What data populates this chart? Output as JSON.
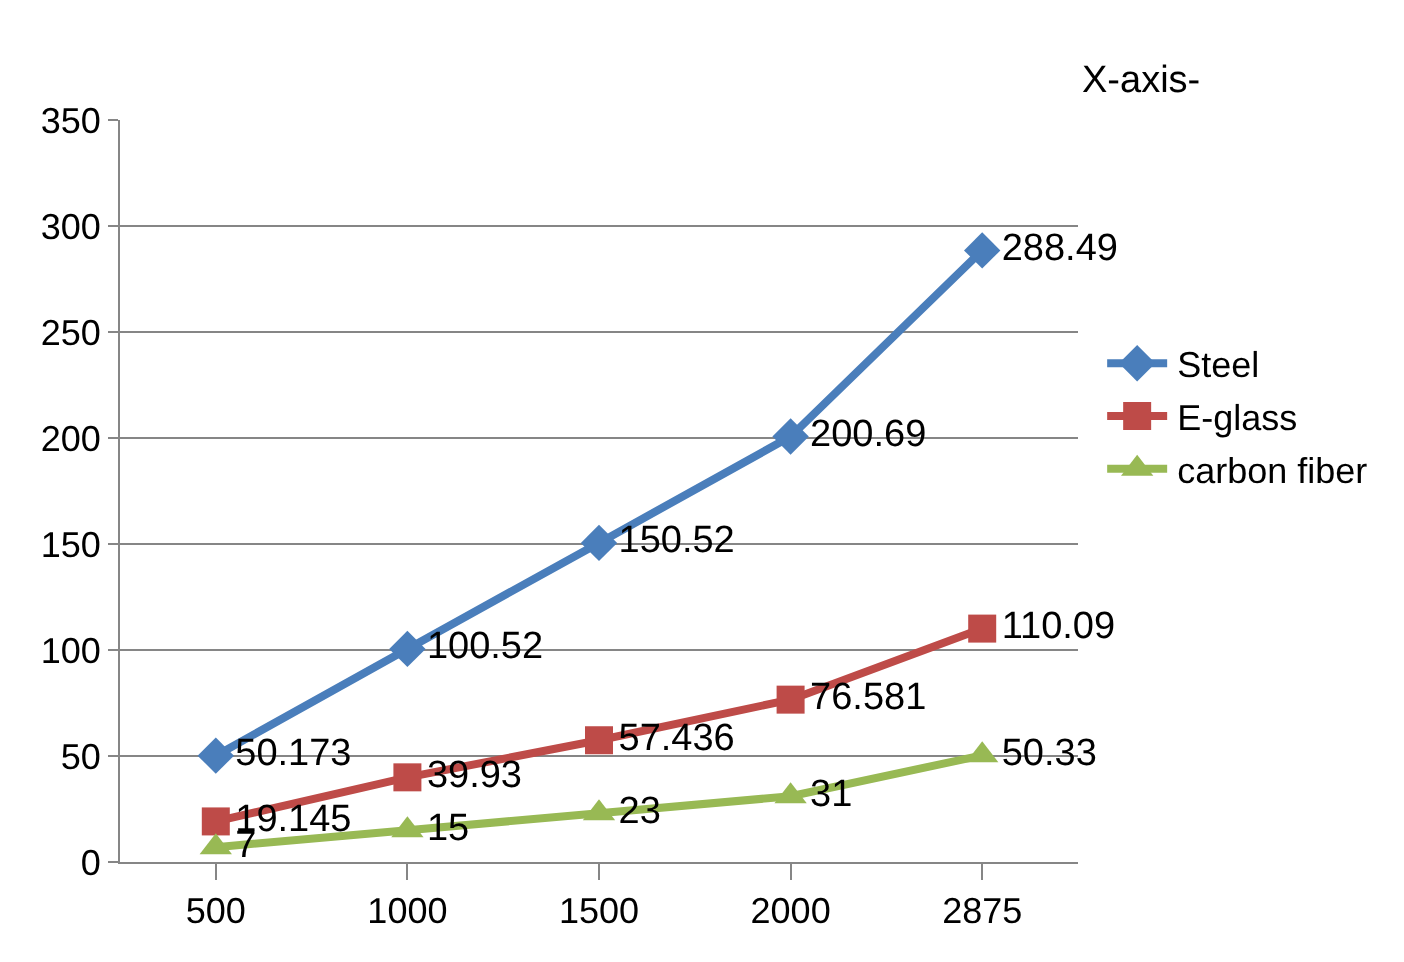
{
  "chart_data": {
    "type": "line",
    "categories": [
      "500",
      "1000",
      "1500",
      "2000",
      "2875"
    ],
    "series": [
      {
        "name": "Steel",
        "color": "#4a7ebb",
        "marker": "diamond",
        "values": [
          50.173,
          100.52,
          150.52,
          200.69,
          288.49
        ]
      },
      {
        "name": "E-glass",
        "color": "#be4b48",
        "marker": "square",
        "values": [
          19.145,
          39.93,
          57.436,
          76.581,
          110.09
        ]
      },
      {
        "name": "carbon fiber",
        "color": "#98b954",
        "marker": "triangle",
        "values": [
          7,
          15,
          23,
          31,
          50.33
        ]
      }
    ],
    "ylim": [
      0,
      350
    ],
    "yticks": [
      0,
      50,
      100,
      150,
      200,
      250,
      300,
      350
    ],
    "grid": "y",
    "legend": "right",
    "data_labels": true,
    "annotations": [
      "X-axis-"
    ]
  }
}
